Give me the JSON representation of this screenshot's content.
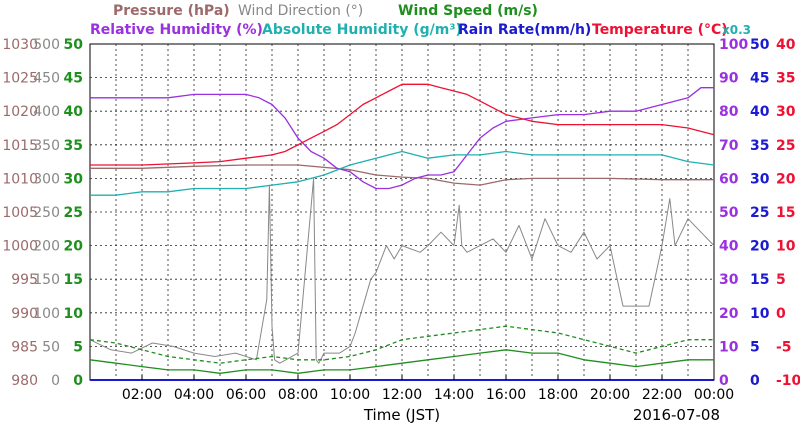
{
  "chart_data": {
    "type": "line",
    "date_label": "2016-07-08",
    "xlabel": "Time (JST)",
    "x_ticks": [
      "02:00",
      "04:00",
      "06:00",
      "08:00",
      "10:00",
      "12:00",
      "14:00",
      "16:00",
      "18:00",
      "20:00",
      "22:00",
      "00:00"
    ],
    "xlim_hours": [
      0,
      24
    ],
    "legend": [
      {
        "key": "pressure",
        "text": "Pressure (hPa)",
        "color": "#9c6a6a"
      },
      {
        "key": "wind_dir",
        "text": "Wind Direction (°)",
        "color": "#888888"
      },
      {
        "key": "wind_speed",
        "text": "Wind Speed (m/s)",
        "color": "#1f8f1f"
      },
      {
        "key": "rh",
        "text": "Relative Humidity (%)",
        "color": "#9b30e0"
      },
      {
        "key": "ah",
        "text": "Absolute Humidity (g/m³)",
        "color": "#20b0b0"
      },
      {
        "key": "rain",
        "text": "Rain Rate(mm/h)",
        "color": "#1a1ad0"
      },
      {
        "key": "temp",
        "text": "Temperature (°C)",
        "color": "#ee1133"
      },
      {
        "key": "ah_factor",
        "text": "x0.3",
        "color": "#20b0b0"
      }
    ],
    "axes": {
      "pressure": {
        "color": "#9c6a6a",
        "range": [
          980,
          1030
        ],
        "ticks": [
          "980",
          "985",
          "990",
          "995",
          "1000",
          "1005",
          "1010",
          "1015",
          "1020",
          "1025",
          "1030"
        ]
      },
      "wind_dir": {
        "color": "#888888",
        "range": [
          0,
          500
        ],
        "ticks": [
          "0",
          "50",
          "100",
          "150",
          "200",
          "250",
          "300",
          "350",
          "400",
          "450",
          "500"
        ]
      },
      "wind_speed": {
        "color": "#1f8f1f",
        "range": [
          0,
          50
        ],
        "ticks": [
          "0",
          "5",
          "10",
          "15",
          "20",
          "25",
          "30",
          "35",
          "40",
          "45",
          "50"
        ]
      },
      "rh": {
        "color": "#9b30e0",
        "range": [
          0,
          100
        ],
        "ticks": [
          "0",
          "10",
          "20",
          "30",
          "40",
          "50",
          "60",
          "70",
          "80",
          "90",
          "100"
        ]
      },
      "rain": {
        "color": "#1a1ad0",
        "range": [
          0,
          50
        ],
        "ticks": [
          "0",
          "5",
          "10",
          "15",
          "20",
          "25",
          "30",
          "35",
          "40",
          "45",
          "50"
        ]
      },
      "temp": {
        "color": "#ee1133",
        "range": [
          -10,
          40
        ],
        "ticks": [
          "-10",
          "-5",
          "0",
          "5",
          "10",
          "15",
          "20",
          "25",
          "30",
          "35",
          "40"
        ]
      }
    },
    "series": [
      {
        "name": "Pressure (hPa)",
        "axis": "pressure",
        "color": "#9c6a6a",
        "x": [
          0,
          2,
          4,
          6,
          8,
          10,
          11,
          12,
          13,
          14,
          15,
          16,
          17,
          18,
          20,
          22,
          23,
          24
        ],
        "values": [
          1011.5,
          1011.5,
          1011.8,
          1012.0,
          1012.0,
          1011.3,
          1010.5,
          1010.2,
          1010.0,
          1009.3,
          1009.0,
          1009.8,
          1010.0,
          1010.0,
          1010.0,
          1009.8,
          1009.8,
          1009.8
        ]
      },
      {
        "name": "Wind Direction (°)",
        "axis": "wind_dir",
        "color": "#888888",
        "x": [
          0,
          0.8,
          1.6,
          2.4,
          3.2,
          4.0,
          4.8,
          5.6,
          6.4,
          6.8,
          6.9,
          7.0,
          7.1,
          7.3,
          8.0,
          8.6,
          8.7,
          8.8,
          9.0,
          9.6,
          10.0,
          10.2,
          10.8,
          11.0,
          11.4,
          11.7,
          12.0,
          12.7,
          13.0,
          13.5,
          14.0,
          14.2,
          14.3,
          14.5,
          15.0,
          15.5,
          16.0,
          16.5,
          17.0,
          17.5,
          18.0,
          18.5,
          19.0,
          19.5,
          20.0,
          20.5,
          21.0,
          21.5,
          22.0,
          22.3,
          22.5,
          23.0,
          23.5,
          24.0
        ],
        "values": [
          60,
          45,
          40,
          55,
          50,
          40,
          35,
          40,
          30,
          120,
          290,
          80,
          30,
          25,
          40,
          300,
          30,
          25,
          40,
          40,
          50,
          70,
          150,
          160,
          200,
          180,
          200,
          190,
          200,
          220,
          200,
          260,
          200,
          190,
          200,
          210,
          190,
          230,
          180,
          240,
          200,
          190,
          220,
          180,
          200,
          110,
          110,
          110,
          200,
          270,
          200,
          240,
          220,
          200
        ]
      },
      {
        "name": "Wind Speed (m/s)",
        "axis": "wind_speed",
        "color": "#1f8f1f",
        "x": [
          0,
          1,
          2,
          3,
          4,
          5,
          6,
          7,
          8,
          9,
          10,
          11,
          12,
          13,
          14,
          15,
          16,
          17,
          18,
          19,
          20,
          21,
          22,
          23,
          24
        ],
        "values": [
          3,
          2.5,
          2,
          1.5,
          1.5,
          1,
          1.5,
          1.5,
          1,
          1.5,
          1.5,
          2,
          2.5,
          3,
          3.5,
          4,
          4.5,
          4,
          4,
          3,
          2.5,
          2,
          2.5,
          3,
          3
        ]
      },
      {
        "name": "Wind Speed gust (m/s)",
        "axis": "wind_speed",
        "color": "#1f8f1f",
        "dashed": true,
        "x": [
          0,
          1,
          2,
          3,
          4,
          5,
          6,
          7,
          8,
          9,
          10,
          11,
          12,
          13,
          14,
          15,
          16,
          17,
          18,
          19,
          20,
          21,
          22,
          23,
          24
        ],
        "values": [
          6,
          5.5,
          4.5,
          3.5,
          3,
          2.5,
          3,
          3.5,
          3,
          3,
          3.5,
          4.5,
          6,
          6.5,
          7,
          7.5,
          8,
          7.5,
          7,
          6,
          5,
          4,
          5,
          6,
          6
        ]
      },
      {
        "name": "Relative Humidity (%)",
        "axis": "rh",
        "color": "#9b30e0",
        "x": [
          0,
          1,
          2,
          3,
          4,
          5,
          6,
          6.5,
          7,
          7.5,
          8,
          8.5,
          9,
          9.5,
          10,
          10.5,
          11,
          11.5,
          12,
          12.5,
          13,
          13.5,
          14,
          14.5,
          15,
          15.5,
          16,
          17,
          18,
          19,
          20,
          21,
          22,
          23,
          23.5,
          24
        ],
        "values": [
          84,
          84,
          84,
          84,
          85,
          85,
          85,
          84,
          82,
          78,
          72,
          68,
          66,
          63,
          62,
          59,
          57,
          57,
          58,
          60,
          61,
          61,
          62,
          67,
          72,
          75,
          77,
          78,
          79,
          79,
          80,
          80,
          82,
          84,
          87,
          87
        ]
      },
      {
        "name": "Absolute Humidity (g/m³)",
        "axis": "rh",
        "color": "#20b0b0",
        "x": [
          0,
          1,
          2,
          3,
          4,
          5,
          6,
          7,
          8,
          9,
          10,
          11,
          12,
          13,
          14,
          15,
          16,
          17,
          18,
          19,
          20,
          21,
          22,
          23,
          24
        ],
        "values": [
          55,
          55,
          56,
          56,
          57,
          57,
          57,
          58,
          59,
          61,
          64,
          66,
          68,
          66,
          67,
          67,
          68,
          67,
          67,
          67,
          67,
          67,
          67,
          65,
          64
        ]
      },
      {
        "name": "Rain Rate(mm/h)",
        "axis": "rain",
        "color": "#1a1ad0",
        "x": [
          0,
          24
        ],
        "values": [
          0,
          0
        ]
      },
      {
        "name": "Temperature (°C)",
        "axis": "temp",
        "color": "#ee1133",
        "x": [
          0,
          2,
          4,
          5,
          6,
          7,
          7.5,
          8,
          8.5,
          9,
          9.5,
          10,
          10.5,
          11,
          11.5,
          12,
          12.5,
          13,
          13.5,
          14,
          14.5,
          15,
          15.5,
          16,
          17,
          18,
          19,
          20,
          21,
          22,
          23,
          24
        ],
        "values": [
          22,
          22,
          22.3,
          22.5,
          23,
          23.5,
          24,
          25,
          26,
          27,
          28,
          29.5,
          31,
          32,
          33,
          34,
          34,
          34,
          33.5,
          33,
          32.5,
          31.5,
          30.5,
          29.5,
          28.5,
          28,
          28,
          28,
          28,
          28,
          27.5,
          26.5
        ]
      }
    ]
  }
}
